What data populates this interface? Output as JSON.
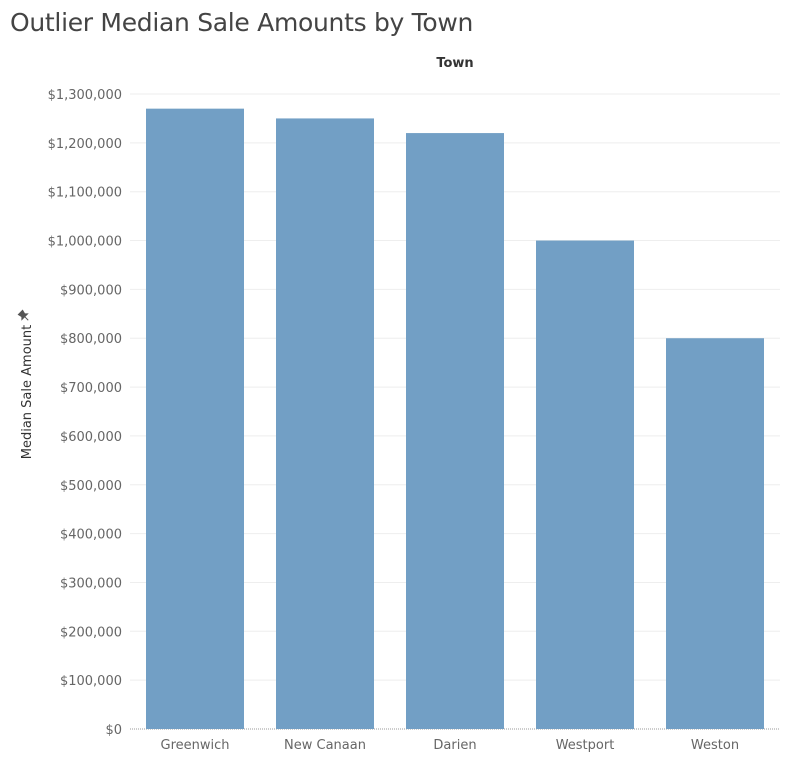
{
  "title": "Outlier Median Sale Amounts by Town",
  "chart_data": {
    "type": "bar",
    "column_header": "Town",
    "ylabel": "Median Sale Amount",
    "categories": [
      "Greenwich",
      "New Canaan",
      "Darien",
      "Westport",
      "Weston"
    ],
    "values": [
      1270000,
      1250000,
      1220000,
      1000000,
      800000
    ],
    "ylim": [
      0,
      1300000
    ],
    "yticks": [
      "$0",
      "$100,000",
      "$200,000",
      "$300,000",
      "$400,000",
      "$500,000",
      "$600,000",
      "$700,000",
      "$800,000",
      "$900,000",
      "$1,000,000",
      "$1,100,000",
      "$1,200,000",
      "$1,300,000"
    ],
    "grid": true,
    "bar_color": "#729fc5",
    "grid_color": "#eeeeee",
    "pin_icon": "pin-icon"
  }
}
